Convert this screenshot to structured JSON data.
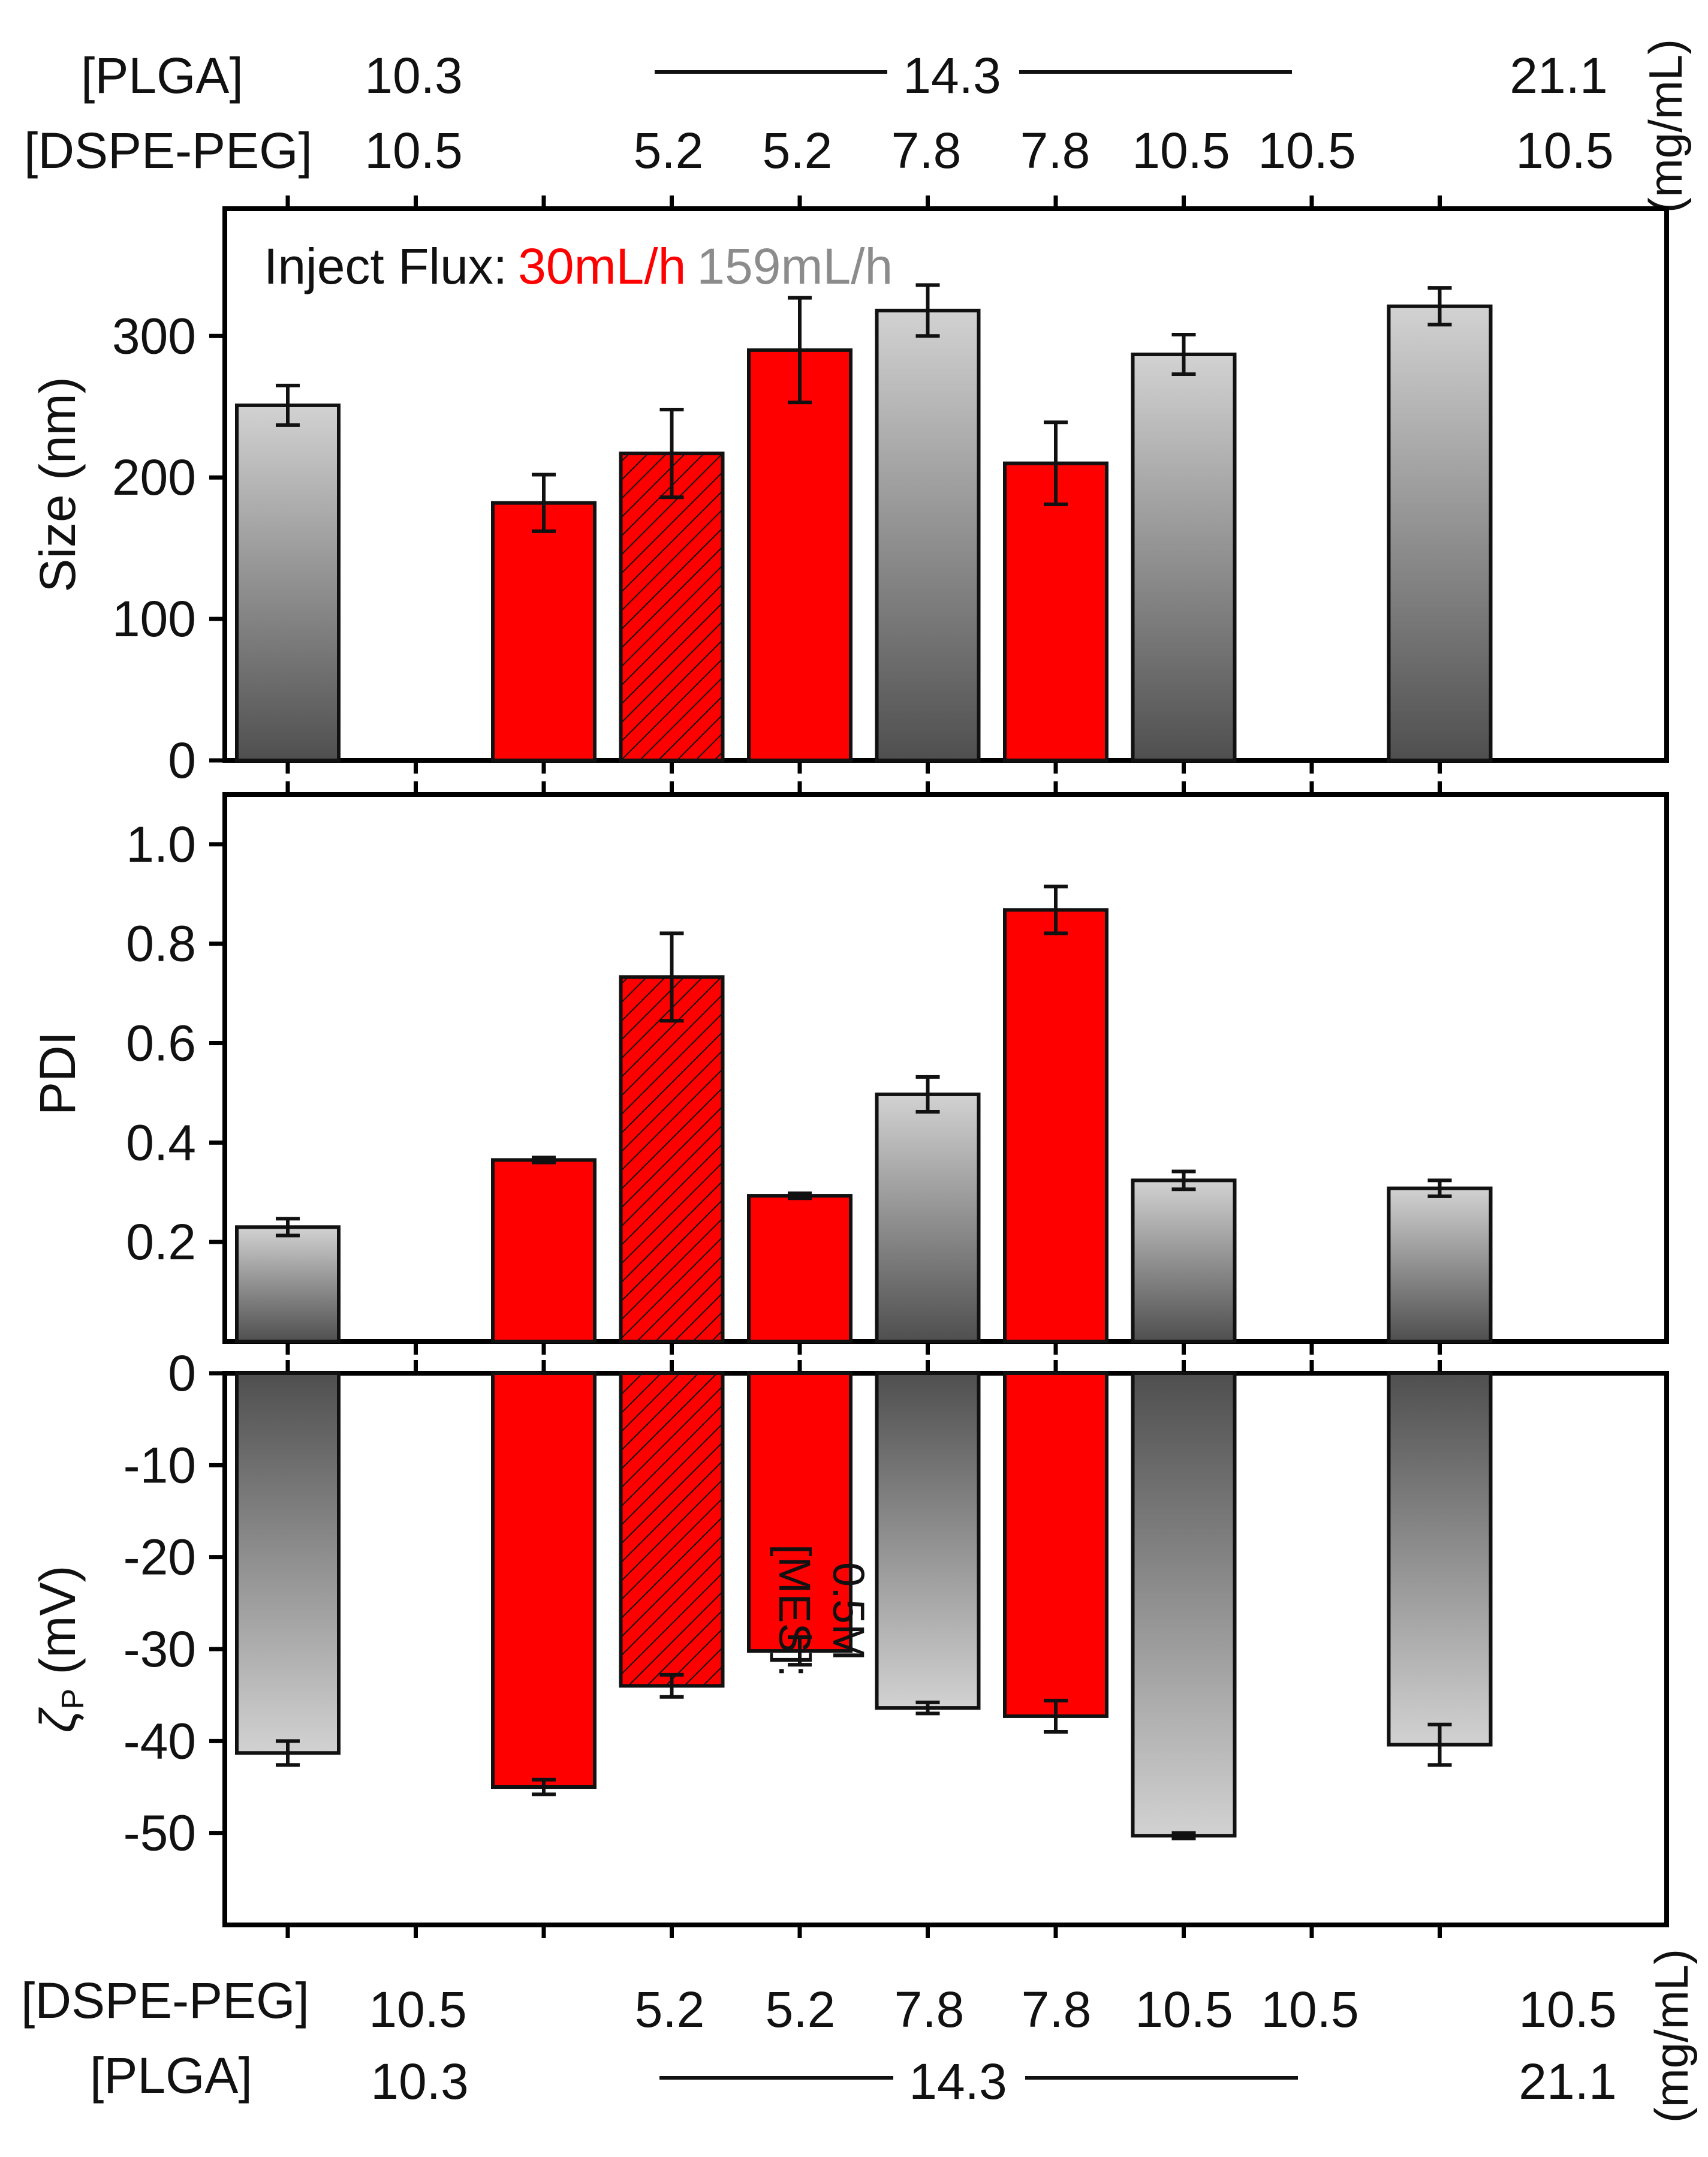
{
  "chart_data": {
    "type": "bar",
    "positions": [
      1,
      3,
      4,
      5,
      6,
      7,
      8,
      10
    ],
    "header_top": {
      "plga_label": "[PLGA]",
      "dspe_label": "[DSPE-PEG]",
      "plga_values": [
        "10.3",
        "14.3",
        "21.1"
      ],
      "dspe_values": [
        "10.5",
        "5.2",
        "5.2",
        "7.8",
        "7.8",
        "10.5",
        "10.5",
        "10.5"
      ],
      "unit": "(mg/mL)"
    },
    "header_bottom": {
      "plga_label": "[PLGA]",
      "dspe_label": "[DSPE-PEG]",
      "plga_values": [
        "10.3",
        "14.3",
        "21.1"
      ],
      "dspe_values": [
        "10.5",
        "5.2",
        "5.2",
        "7.8",
        "7.8",
        "10.5",
        "10.5",
        "10.5"
      ],
      "unit": "(mg/mL)"
    },
    "legend": {
      "prefix": "Inject Flux:",
      "red_label": "30mL/h",
      "grey_label": "159mL/h"
    },
    "bar_styles": [
      "grey",
      "red",
      "red-hatched",
      "red",
      "grey",
      "red",
      "grey",
      "grey"
    ],
    "colors": {
      "red": "#ff0000",
      "grey_light": "#d2d2d2",
      "grey_dark": "#4f4f4f",
      "axis": "#000000",
      "legend_grey": "#8c8c8c"
    },
    "panels": [
      {
        "name": "size",
        "ylabel": "Size (nm)",
        "ylim": [
          0,
          390
        ],
        "yticks": [
          0,
          100,
          200,
          300
        ],
        "ytick_labels": [
          "0",
          "100",
          "200",
          "300"
        ],
        "values": [
          251,
          182,
          217,
          290,
          318,
          210,
          287,
          321
        ],
        "errors": [
          14,
          20,
          31,
          37,
          18,
          29,
          14,
          13
        ]
      },
      {
        "name": "pdi",
        "ylabel": "PDI",
        "ylim": [
          0,
          1.1
        ],
        "yticks": [
          0.2,
          0.4,
          0.6,
          0.8,
          1.0
        ],
        "ytick_labels": [
          "0.2",
          "0.4",
          "0.6",
          "0.8",
          "1.0"
        ],
        "values": [
          0.23,
          0.365,
          0.733,
          0.293,
          0.497,
          0.868,
          0.324,
          0.308
        ],
        "errors": [
          0.017,
          0.005,
          0.088,
          0.005,
          0.035,
          0.047,
          0.018,
          0.016
        ]
      },
      {
        "name": "zeta",
        "ylabel": "ζP (mV)",
        "ylabel_main": "ζ",
        "ylabel_sub": "P",
        "ylabel_unit": " (mV)",
        "ylim": [
          -60,
          0
        ],
        "yticks": [
          0,
          -10,
          -20,
          -30,
          -40,
          -50
        ],
        "ytick_labels": [
          "0",
          "-10",
          "-20",
          "-30",
          "-40",
          "-50"
        ],
        "values": [
          -41.3,
          -45,
          -34,
          -30.2,
          -36.4,
          -37.3,
          -50.3,
          -40.4
        ],
        "errors": [
          1.3,
          0.8,
          1.2,
          1.5,
          0.6,
          1.7,
          0.3,
          2.2
        ]
      }
    ],
    "annotation": {
      "line1": "[MES]:",
      "line2": "0.5M"
    }
  }
}
